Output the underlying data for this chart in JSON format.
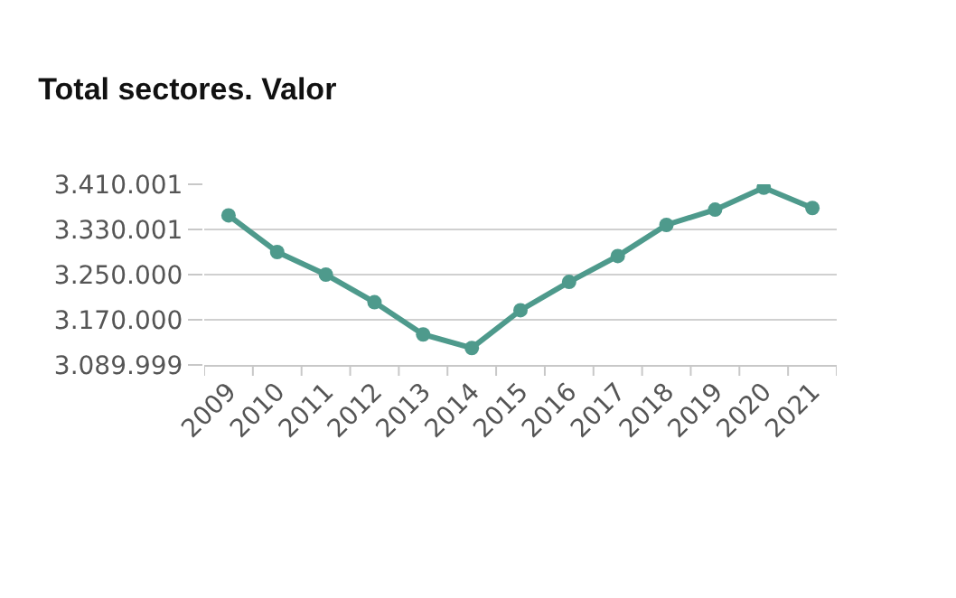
{
  "chart_data": {
    "type": "line",
    "title": "Total sectores. Valor",
    "categories": [
      "2009",
      "2010",
      "2011",
      "2012",
      "2013",
      "2014",
      "2015",
      "2016",
      "2017",
      "2018",
      "2019",
      "2020",
      "2021"
    ],
    "series": [
      {
        "color": "#4e9a8c",
        "values": [
          3355000,
          3290000,
          3250000,
          3201000,
          3144000,
          3120000,
          3187000,
          3237000,
          3283000,
          3338000,
          3365000,
          3404000,
          3368000
        ]
      }
    ],
    "ylim": [
      3089999,
      3410001
    ],
    "yticks": [
      {
        "value": 3089999,
        "label": "3.089.999"
      },
      {
        "value": 3170000,
        "label": "3.170.000"
      },
      {
        "value": 3250000,
        "label": "3.250.000"
      },
      {
        "value": 3330001,
        "label": "3.330.001"
      },
      {
        "value": 3410001,
        "label": "3.410.001"
      }
    ],
    "grid": "y",
    "marker": "circle",
    "line_style": "solid",
    "legend": false
  }
}
